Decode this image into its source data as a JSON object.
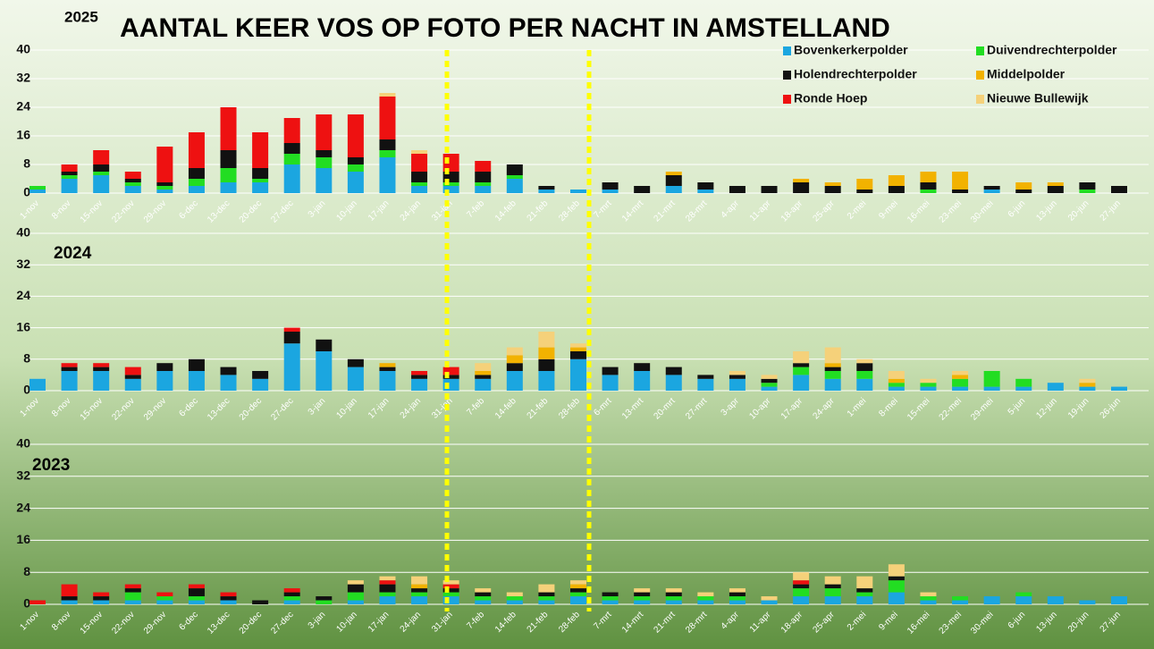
{
  "title": "AANTAL KEER VOS OP FOTO PER NACHT IN AMSTELLAND",
  "legend": [
    {
      "name": "Bovenkerkerpolder",
      "color": "#1ba6e0"
    },
    {
      "name": "Duivendrechterpolder",
      "color": "#22dd22"
    },
    {
      "name": "Holendrechterpolder",
      "color": "#111111"
    },
    {
      "name": "Middelpolder",
      "color": "#f2b200"
    },
    {
      "name": "Ronde Hoep",
      "color": "#ee1111"
    },
    {
      "name": "Nieuwe Bullewijk",
      "color": "#f5d17a"
    }
  ],
  "chart_data": [
    {
      "type": "bar",
      "stacked": true,
      "title": "2025",
      "ylim": [
        0,
        40
      ],
      "yticks": [
        0,
        8,
        16,
        24,
        32,
        40
      ],
      "grid": true,
      "categories": [
        "1-nov",
        "8-nov",
        "15-nov",
        "22-nov",
        "29-nov",
        "6-dec",
        "13-dec",
        "20-dec",
        "27-dec",
        "3-jan",
        "10-jan",
        "17-jan",
        "24-jan",
        "31-jan",
        "7-feb",
        "14-feb",
        "21-feb",
        "28-feb",
        "7-mrt",
        "14-mrt",
        "21-mrt",
        "28-mrt",
        "4-apr",
        "11-apr",
        "18-apr",
        "25-apr",
        "2-mei",
        "9-mei",
        "16-mei",
        "23-mei",
        "30-mei",
        "6-jun",
        "13-jun",
        "20-jun",
        "27-jun"
      ],
      "series": [
        {
          "values": [
            1,
            4,
            5,
            2,
            1,
            2,
            3,
            3,
            8,
            7,
            6,
            10,
            2,
            2,
            2,
            4,
            1,
            1,
            1,
            0,
            2,
            1,
            0,
            0,
            0,
            0,
            0,
            0,
            0,
            0,
            1,
            0,
            0,
            0,
            0
          ]
        },
        {
          "values": [
            1,
            1,
            1,
            1,
            1,
            2,
            4,
            1,
            3,
            3,
            2,
            2,
            1,
            1,
            1,
            1,
            0,
            0,
            0,
            0,
            0,
            0,
            0,
            0,
            0,
            0,
            0,
            0,
            1,
            0,
            0,
            0,
            0,
            1,
            0
          ]
        },
        {
          "values": [
            0,
            1,
            2,
            1,
            1,
            3,
            5,
            3,
            3,
            2,
            2,
            3,
            3,
            3,
            3,
            3,
            1,
            0,
            2,
            2,
            3,
            2,
            2,
            2,
            3,
            2,
            1,
            2,
            2,
            1,
            1,
            1,
            2,
            2,
            2
          ]
        },
        {
          "values": [
            0,
            0,
            0,
            0,
            0,
            0,
            0,
            0,
            0,
            0,
            0,
            0,
            0,
            0,
            0,
            0,
            0,
            0,
            0,
            0,
            1,
            0,
            0,
            0,
            1,
            1,
            3,
            3,
            3,
            5,
            0,
            2,
            1,
            0,
            0
          ]
        },
        {
          "values": [
            0,
            2,
            4,
            2,
            10,
            10,
            12,
            10,
            7,
            10,
            12,
            12,
            5,
            5,
            3,
            0,
            0,
            0,
            0,
            0,
            0,
            0,
            0,
            0,
            0,
            0,
            0,
            0,
            0,
            0,
            0,
            0,
            0,
            0,
            0
          ]
        },
        {
          "values": [
            0,
            0,
            0,
            0,
            0,
            0,
            0,
            0,
            0,
            0,
            0,
            1,
            1,
            0,
            0,
            0,
            0,
            0,
            0,
            0,
            0,
            0,
            0,
            0,
            0,
            0,
            0,
            0,
            0,
            0,
            0,
            0,
            0,
            0,
            0
          ]
        }
      ]
    },
    {
      "type": "bar",
      "stacked": true,
      "title": "2024",
      "ylim": [
        0,
        40
      ],
      "yticks": [
        0,
        8,
        16,
        24,
        32,
        40
      ],
      "grid": true,
      "categories": [
        "1-nov",
        "8-nov",
        "15-nov",
        "22-nov",
        "29-nov",
        "6-dec",
        "13-dec",
        "20-dec",
        "27-dec",
        "3-jan",
        "10-jan",
        "17-jan",
        "24-jan",
        "31-jan",
        "7-feb",
        "14-feb",
        "21-feb",
        "28-feb",
        "6-mrt",
        "13-mrt",
        "20-mrt",
        "27-mrt",
        "3-apr",
        "10-apr",
        "17-apr",
        "24-apr",
        "1-mei",
        "8-mei",
        "15-mei",
        "22-mei",
        "29-mei",
        "5-jun",
        "12-jun",
        "19-jun",
        "26-jun"
      ],
      "series": [
        {
          "values": [
            3,
            5,
            5,
            3,
            5,
            5,
            4,
            3,
            12,
            10,
            6,
            5,
            3,
            3,
            3,
            5,
            5,
            8,
            4,
            5,
            4,
            3,
            3,
            1,
            4,
            3,
            3,
            1,
            1,
            1,
            1,
            1,
            2,
            1,
            1
          ]
        },
        {
          "values": [
            0,
            0,
            0,
            0,
            0,
            0,
            0,
            0,
            0,
            0,
            0,
            0,
            0,
            0,
            0,
            0,
            0,
            0,
            0,
            0,
            0,
            0,
            0,
            1,
            2,
            2,
            2,
            1,
            1,
            2,
            4,
            2,
            0,
            0,
            0
          ]
        },
        {
          "values": [
            0,
            1,
            1,
            1,
            2,
            3,
            2,
            2,
            3,
            3,
            2,
            1,
            1,
            1,
            1,
            2,
            3,
            2,
            2,
            2,
            2,
            1,
            1,
            1,
            1,
            1,
            2,
            0,
            0,
            0,
            0,
            0,
            0,
            0,
            0
          ]
        },
        {
          "values": [
            0,
            0,
            0,
            0,
            0,
            0,
            0,
            0,
            0,
            0,
            0,
            1,
            0,
            0,
            1,
            2,
            3,
            1,
            0,
            0,
            0,
            0,
            0,
            0,
            0,
            1,
            0,
            1,
            0,
            1,
            0,
            0,
            0,
            1,
            0
          ]
        },
        {
          "values": [
            0,
            1,
            1,
            2,
            0,
            0,
            0,
            0,
            1,
            0,
            0,
            0,
            1,
            2,
            0,
            0,
            0,
            0,
            0,
            0,
            0,
            0,
            0,
            0,
            0,
            0,
            0,
            0,
            0,
            0,
            0,
            0,
            0,
            0,
            0
          ]
        },
        {
          "values": [
            0,
            0,
            0,
            0,
            0,
            0,
            0,
            0,
            0,
            0,
            0,
            0,
            0,
            0,
            2,
            2,
            4,
            1,
            0,
            0,
            0,
            0,
            1,
            1,
            3,
            4,
            1,
            2,
            1,
            1,
            0,
            0,
            0,
            1,
            0
          ]
        }
      ]
    },
    {
      "type": "bar",
      "stacked": true,
      "title": "2023",
      "ylim": [
        0,
        40
      ],
      "yticks": [
        0,
        8,
        16,
        24,
        32,
        40
      ],
      "grid": true,
      "categories": [
        "1-nov",
        "8-nov",
        "15-nov",
        "22-nov",
        "29-nov",
        "6-dec",
        "13-dec",
        "20-dec",
        "27-dec",
        "3-jan",
        "10-jan",
        "17-jan",
        "24-jan",
        "31-jan",
        "7-feb",
        "14-feb",
        "21-feb",
        "28-feb",
        "7-mrt",
        "14-mrt",
        "21-mrt",
        "28-mrt",
        "4-apr",
        "11-apr",
        "18-apr",
        "25-apr",
        "2-mei",
        "9-mei",
        "16-mei",
        "23-mei",
        "30-mei",
        "6-jun",
        "13-jun",
        "20-jun",
        "27-jun"
      ],
      "series": [
        {
          "values": [
            0,
            1,
            1,
            1,
            1,
            1,
            1,
            0,
            1,
            0,
            1,
            2,
            2,
            2,
            1,
            1,
            1,
            2,
            1,
            1,
            1,
            1,
            1,
            1,
            2,
            2,
            2,
            3,
            1,
            1,
            2,
            2,
            2,
            1,
            2
          ]
        },
        {
          "values": [
            0,
            0,
            0,
            2,
            1,
            1,
            0,
            0,
            1,
            1,
            2,
            1,
            1,
            1,
            1,
            1,
            1,
            1,
            1,
            1,
            1,
            1,
            1,
            0,
            2,
            2,
            1,
            3,
            1,
            1,
            0,
            1,
            0,
            0,
            0
          ]
        },
        {
          "values": [
            0,
            1,
            1,
            1,
            0,
            2,
            1,
            1,
            1,
            1,
            2,
            2,
            1,
            1,
            1,
            0,
            1,
            1,
            1,
            1,
            1,
            0,
            1,
            0,
            1,
            1,
            1,
            1,
            0,
            0,
            0,
            0,
            0,
            0,
            0
          ]
        },
        {
          "values": [
            0,
            0,
            0,
            0,
            0,
            0,
            0,
            0,
            0,
            0,
            0,
            0,
            1,
            0,
            0,
            0,
            0,
            1,
            0,
            0,
            0,
            0,
            0,
            0,
            0,
            0,
            0,
            0,
            0,
            0,
            0,
            0,
            0,
            0,
            0
          ]
        },
        {
          "values": [
            1,
            3,
            1,
            1,
            1,
            1,
            1,
            0,
            1,
            0,
            0,
            1,
            0,
            1,
            0,
            0,
            0,
            0,
            0,
            0,
            0,
            0,
            0,
            0,
            1,
            0,
            0,
            0,
            0,
            0,
            0,
            0,
            0,
            0,
            0
          ]
        },
        {
          "values": [
            0,
            0,
            0,
            0,
            0,
            0,
            0,
            0,
            0,
            0,
            1,
            1,
            2,
            1,
            1,
            1,
            2,
            1,
            0,
            1,
            1,
            1,
            1,
            1,
            2,
            2,
            3,
            3,
            1,
            0,
            0,
            0,
            0,
            0,
            0
          ]
        }
      ]
    }
  ]
}
